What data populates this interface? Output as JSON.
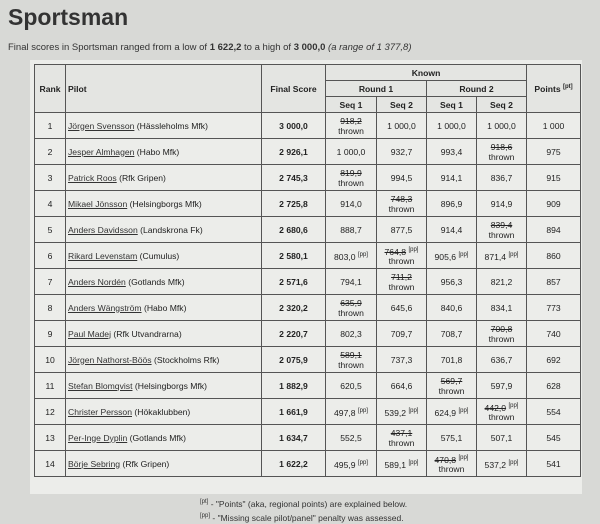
{
  "title": "Sportsman",
  "summary": {
    "prefix": "Final scores in Sportsman ranged from a low of",
    "low": "1 622,2",
    "middle": "to a high of",
    "high": "3 000,0",
    "range": "(a range of 1 377,8)"
  },
  "table": {
    "header": {
      "rank": "Rank",
      "pilot": "Pilot",
      "final_score": "Final Score",
      "known": "Known",
      "round1": "Round 1",
      "round2": "Round 2",
      "seq1": "Seq 1",
      "seq2": "Seq 2",
      "points": "Points",
      "points_note": "[pt]"
    },
    "rows": [
      {
        "rank": "1",
        "pilot": "Jörgen Svensson",
        "club": "(Hässleholms Mfk)",
        "final": "3 000,0",
        "scores": [
          {
            "value": "918,2",
            "thrown": "thrown"
          },
          {
            "value": "1 000,0"
          },
          {
            "value": "1 000,0"
          },
          {
            "value": "1 000,0"
          }
        ],
        "points": "1 000"
      },
      {
        "rank": "2",
        "pilot": "Jesper Almhagen",
        "club": "(Habo Mfk)",
        "final": "2 926,1",
        "scores": [
          {
            "value": "1 000,0"
          },
          {
            "value": "932,7"
          },
          {
            "value": "993,4"
          },
          {
            "value": "918,6",
            "thrown": "thrown"
          }
        ],
        "points": "975"
      },
      {
        "rank": "3",
        "pilot": "Patrick Roos",
        "club": "(Rfk Gripen)",
        "final": "2 745,3",
        "scores": [
          {
            "value": "819,9",
            "thrown": "thrown"
          },
          {
            "value": "994,5"
          },
          {
            "value": "914,1"
          },
          {
            "value": "836,7"
          }
        ],
        "points": "915"
      },
      {
        "rank": "4",
        "pilot": "Mikael Jönsson",
        "club": "(Helsingborgs Mfk)",
        "final": "2 725,8",
        "scores": [
          {
            "value": "914,0"
          },
          {
            "value": "748,3",
            "thrown": "thrown"
          },
          {
            "value": "896,9"
          },
          {
            "value": "914,9"
          }
        ],
        "points": "909"
      },
      {
        "rank": "5",
        "pilot": "Anders Davidsson",
        "club": "(Landskrona Fk)",
        "final": "2 680,6",
        "scores": [
          {
            "value": "888,7"
          },
          {
            "value": "877,5"
          },
          {
            "value": "914,4"
          },
          {
            "value": "839,4",
            "thrown": "thrown"
          }
        ],
        "points": "894"
      },
      {
        "rank": "6",
        "pilot": "Rikard Levenstam",
        "club": "(Cumulus)",
        "final": "2 580,1",
        "scores": [
          {
            "value": "803,0",
            "note": "[pp]"
          },
          {
            "value": "764,8",
            "note": "[pp]",
            "thrown": "thrown"
          },
          {
            "value": "905,6",
            "note": "[pp]"
          },
          {
            "value": "871,4",
            "note": "[pp]"
          }
        ],
        "points": "860"
      },
      {
        "rank": "7",
        "pilot": "Anders Nordén",
        "club": "(Gotlands Mfk)",
        "final": "2 571,6",
        "scores": [
          {
            "value": "794,1"
          },
          {
            "value": "711,2",
            "thrown": "thrown"
          },
          {
            "value": "956,3"
          },
          {
            "value": "821,2"
          }
        ],
        "points": "857"
      },
      {
        "rank": "8",
        "pilot": "Anders Wängström",
        "club": "(Habo Mfk)",
        "final": "2 320,2",
        "scores": [
          {
            "value": "635,9",
            "thrown": "thrown"
          },
          {
            "value": "645,6"
          },
          {
            "value": "840,6"
          },
          {
            "value": "834,1"
          }
        ],
        "points": "773"
      },
      {
        "rank": "9",
        "pilot": "Paul Madej",
        "club": "(Rfk Utvandrarna)",
        "final": "2 220,7",
        "scores": [
          {
            "value": "802,3"
          },
          {
            "value": "709,7"
          },
          {
            "value": "708,7"
          },
          {
            "value": "700,8",
            "thrown": "thrown"
          }
        ],
        "points": "740"
      },
      {
        "rank": "10",
        "pilot": "Jörgen Nathorst-Böös",
        "club": "(Stockholms Rfk)",
        "final": "2 075,9",
        "scores": [
          {
            "value": "589,1",
            "thrown": "thrown"
          },
          {
            "value": "737,3"
          },
          {
            "value": "701,8"
          },
          {
            "value": "636,7"
          }
        ],
        "points": "692"
      },
      {
        "rank": "11",
        "pilot": "Stefan Blomqvist",
        "club": "(Helsingborgs Mfk)",
        "final": "1 882,9",
        "scores": [
          {
            "value": "620,5"
          },
          {
            "value": "664,6"
          },
          {
            "value": "569,7",
            "thrown": "thrown"
          },
          {
            "value": "597,9"
          }
        ],
        "points": "628"
      },
      {
        "rank": "12",
        "pilot": "Christer Persson",
        "club": "(Hökaklubben)",
        "final": "1 661,9",
        "scores": [
          {
            "value": "497,8",
            "note": "[pp]"
          },
          {
            "value": "539,2",
            "note": "[pp]"
          },
          {
            "value": "624,9",
            "note": "[pp]"
          },
          {
            "value": "442,0",
            "note": "[pp]",
            "thrown": "thrown"
          }
        ],
        "points": "554"
      },
      {
        "rank": "13",
        "pilot": "Per-Inge Dyplin",
        "club": "(Gotlands Mfk)",
        "final": "1 634,7",
        "scores": [
          {
            "value": "552,5"
          },
          {
            "value": "437,1",
            "thrown": "thrown"
          },
          {
            "value": "575,1"
          },
          {
            "value": "507,1"
          }
        ],
        "points": "545"
      },
      {
        "rank": "14",
        "pilot": "Börje Sebring",
        "club": "(Rfk Gripen)",
        "final": "1 622,2",
        "scores": [
          {
            "value": "495,9",
            "note": "[pp]"
          },
          {
            "value": "589,1",
            "note": "[pp]"
          },
          {
            "value": "470,8",
            "note": "[pp]",
            "thrown": "thrown"
          },
          {
            "value": "537,2",
            "note": "[pp]"
          }
        ],
        "points": "541"
      }
    ]
  },
  "footnotes": [
    {
      "mark": "[pt]",
      "text": "- \"Points\" (aka, regional points) are explained below."
    },
    {
      "mark": "[pp]",
      "text": "- \"Missing scale pilot/panel\" penalty was assessed."
    }
  ]
}
